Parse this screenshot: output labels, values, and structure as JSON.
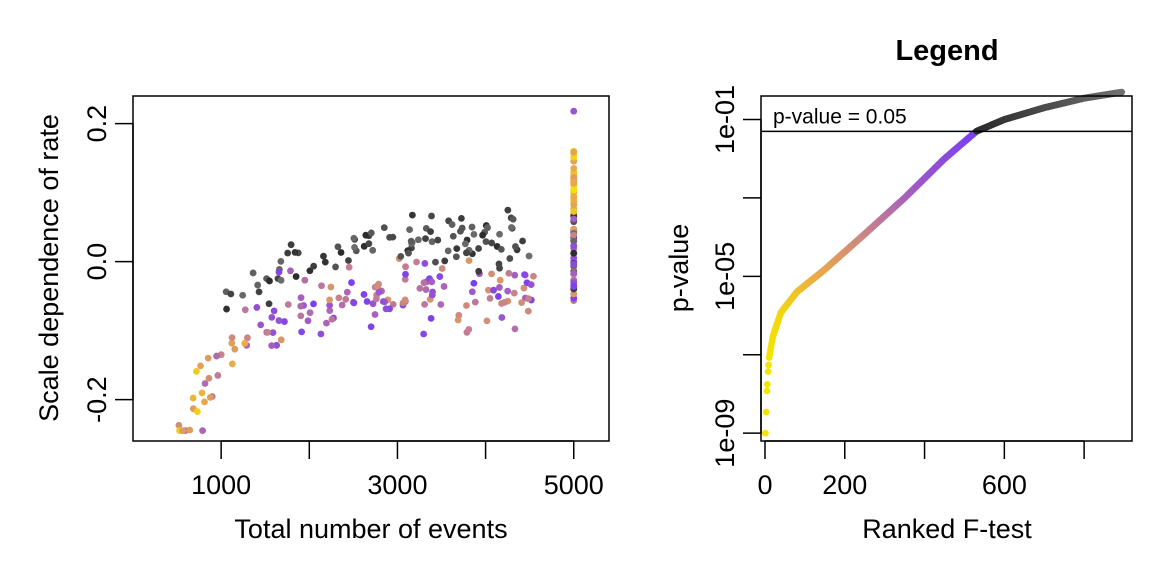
{
  "chart_data": [
    {
      "type": "scatter",
      "title": "",
      "xlabel": "Total number of events",
      "ylabel": "Scale dependence of rate",
      "xlim": [
        0,
        5400
      ],
      "ylim": [
        -0.26,
        0.24
      ],
      "x_ticks": [
        1000,
        2000,
        3000,
        4000,
        5000
      ],
      "x_tick_labels": [
        "1000",
        "3000",
        "5000"
      ],
      "x_tick_label_values": [
        1000,
        3000,
        5000
      ],
      "y_ticks": [
        -0.2,
        0.0,
        0.2
      ],
      "y_tick_labels": [
        "-0.2",
        "0.0",
        "0.2"
      ],
      "color_scale": [
        "#f5e400",
        "#e9a94a",
        "#c57f90",
        "#9a55cf",
        "#7a3ff0",
        "#2a2a2a",
        "#707070"
      ],
      "point_colors_encode": "ranked F-test p-value (see legend panel)"
    },
    {
      "type": "line",
      "title": "Legend",
      "xlabel": "Ranked F-test",
      "ylabel": "p-value",
      "x_scale": "linear",
      "y_scale": "log",
      "xlim": [
        -10,
        920
      ],
      "ylim_log10": [
        -9.2,
        -0.4
      ],
      "x_ticks": [
        0,
        200,
        400,
        600,
        800
      ],
      "x_tick_labels": [
        "0",
        "200",
        "600"
      ],
      "x_tick_label_values": [
        0,
        200,
        600
      ],
      "y_ticks_log10": [
        -9,
        -7,
        -5,
        -3,
        -1
      ],
      "y_tick_labels": [
        "1e-09",
        "1e-05",
        "1e-01"
      ],
      "y_tick_label_log10": [
        -9,
        -5,
        -1
      ],
      "reference_line": {
        "value": 0.05,
        "label": "p-value = 0.05"
      },
      "curve": [
        {
          "x": 1,
          "p": 1e-09
        },
        {
          "x": 5,
          "p": 1.2e-08
        },
        {
          "x": 10,
          "p": 8e-08
        },
        {
          "x": 20,
          "p": 3e-07
        },
        {
          "x": 40,
          "p": 1.2e-06
        },
        {
          "x": 80,
          "p": 4e-06
        },
        {
          "x": 150,
          "p": 1.5e-05
        },
        {
          "x": 250,
          "p": 0.00012
        },
        {
          "x": 350,
          "p": 0.001
        },
        {
          "x": 450,
          "p": 0.01
        },
        {
          "x": 530,
          "p": 0.05
        },
        {
          "x": 600,
          "p": 0.1
        },
        {
          "x": 700,
          "p": 0.2
        },
        {
          "x": 800,
          "p": 0.35
        },
        {
          "x": 895,
          "p": 0.5
        }
      ]
    }
  ]
}
